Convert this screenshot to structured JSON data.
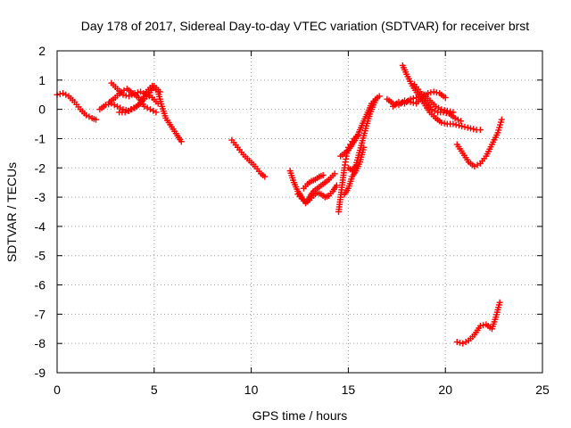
{
  "chart_data": {
    "type": "scatter",
    "title": "Day 178 of 2017, Sidereal Day-to-day VTEC variation (SDTVAR) for receiver brst",
    "xlabel": "GPS time / hours",
    "ylabel": "SDTVAR / TECUs",
    "xlim": [
      0,
      25
    ],
    "ylim": [
      -9,
      2
    ],
    "xticks": [
      "0",
      "5",
      "10",
      "15",
      "20",
      "25"
    ],
    "yticks": [
      "2",
      "1",
      "0",
      "-1",
      "-2",
      "-3",
      "-4",
      "-5",
      "-6",
      "-7",
      "-8",
      "-9"
    ],
    "grid": true,
    "marker": "+",
    "color": "#ff0000",
    "segments": [
      {
        "x": [
          0.0,
          0.3,
          0.6,
          0.9,
          1.2,
          1.5,
          1.8,
          2.0
        ],
        "y": [
          0.5,
          0.55,
          0.45,
          0.25,
          0.0,
          -0.2,
          -0.3,
          -0.35
        ]
      },
      {
        "x": [
          2.2,
          2.5,
          2.8,
          3.1,
          3.4,
          3.7,
          4.0,
          4.3,
          4.6,
          4.9,
          5.2,
          5.4,
          5.6,
          5.9,
          6.2,
          6.4
        ],
        "y": [
          0.0,
          0.15,
          0.2,
          0.1,
          0.0,
          -0.05,
          0.05,
          0.2,
          0.6,
          0.8,
          0.6,
          0.1,
          -0.3,
          -0.6,
          -0.9,
          -1.1
        ]
      },
      {
        "x": [
          2.8,
          3.1,
          3.4,
          3.7,
          4.0,
          4.3,
          4.6,
          4.9,
          5.2
        ],
        "y": [
          0.9,
          0.7,
          0.5,
          0.45,
          0.55,
          0.6,
          0.5,
          0.4,
          0.2
        ]
      },
      {
        "x": [
          2.7,
          3.0,
          3.3,
          3.6,
          3.9,
          4.2,
          4.5,
          4.8,
          5.1
        ],
        "y": [
          0.25,
          0.4,
          0.6,
          0.7,
          0.55,
          0.4,
          0.1,
          0.0,
          -0.1
        ]
      },
      {
        "x": [
          3.2,
          3.5,
          3.8,
          4.1,
          4.4,
          4.7,
          5.0,
          5.3
        ],
        "y": [
          -0.1,
          -0.1,
          0.0,
          0.1,
          0.3,
          0.5,
          0.8,
          0.6
        ]
      },
      {
        "x": [
          9.0,
          9.3,
          9.6,
          9.9,
          10.2,
          10.5,
          10.7
        ],
        "y": [
          -1.05,
          -1.3,
          -1.55,
          -1.75,
          -1.95,
          -2.2,
          -2.3
        ]
      },
      {
        "x": [
          12.0,
          12.2,
          12.4,
          12.6,
          12.8,
          13.0,
          13.2,
          13.4,
          13.6,
          13.8,
          14.0,
          14.3
        ],
        "y": [
          -2.1,
          -2.5,
          -2.8,
          -3.0,
          -3.2,
          -3.0,
          -2.8,
          -2.7,
          -2.6,
          -2.5,
          -2.4,
          -2.2
        ]
      },
      {
        "x": [
          12.4,
          12.6,
          12.8,
          13.0,
          13.2,
          13.4,
          13.6,
          13.8,
          14.0,
          14.2,
          14.4
        ],
        "y": [
          -2.9,
          -3.05,
          -3.2,
          -3.1,
          -2.95,
          -2.85,
          -2.9,
          -3.0,
          -2.95,
          -2.8,
          -2.6
        ]
      },
      {
        "x": [
          12.7,
          12.9,
          13.1,
          13.3,
          13.5,
          13.7
        ],
        "y": [
          -2.7,
          -2.55,
          -2.45,
          -2.4,
          -2.3,
          -2.25
        ]
      },
      {
        "x": [
          14.5,
          14.6,
          14.7,
          14.8,
          14.9,
          15.0,
          15.1,
          15.2,
          15.3,
          15.4,
          15.5
        ],
        "y": [
          -3.5,
          -3.0,
          -2.5,
          -2.0,
          -1.6,
          -1.3,
          -1.2,
          -1.1,
          -1.0,
          -0.95,
          -0.9
        ]
      },
      {
        "x": [
          14.6,
          14.8,
          15.0,
          15.2,
          15.4,
          15.6,
          15.8,
          16.0,
          16.2,
          16.4,
          16.6
        ],
        "y": [
          -1.6,
          -1.5,
          -1.4,
          -1.2,
          -1.0,
          -0.7,
          -0.4,
          -0.1,
          0.2,
          0.35,
          0.45
        ]
      },
      {
        "x": [
          15.0,
          15.2,
          15.4,
          15.6,
          15.8,
          16.0,
          16.2,
          16.4
        ],
        "y": [
          -2.0,
          -2.1,
          -1.9,
          -1.4,
          -0.9,
          -0.4,
          0.0,
          0.3
        ]
      },
      {
        "x": [
          14.8,
          15.0,
          15.2,
          15.4,
          15.6,
          15.8
        ],
        "y": [
          -2.9,
          -2.7,
          -2.3,
          -2.1,
          -1.8,
          -1.3
        ]
      },
      {
        "x": [
          17.0,
          17.3,
          17.6,
          17.9,
          18.2,
          18.5,
          18.8,
          19.1,
          19.4,
          19.7,
          20.0
        ],
        "y": [
          0.35,
          0.2,
          0.15,
          0.3,
          0.25,
          0.2,
          0.4,
          0.55,
          0.6,
          0.55,
          0.4
        ]
      },
      {
        "x": [
          17.3,
          17.6,
          17.9,
          18.2,
          18.5
        ],
        "y": [
          0.1,
          0.25,
          0.2,
          0.35,
          0.4
        ]
      },
      {
        "x": [
          17.8,
          18.0,
          18.3,
          18.6,
          18.9,
          19.2,
          19.5,
          19.8,
          20.1,
          20.4,
          20.7,
          21.0,
          21.3,
          21.6,
          21.8
        ],
        "y": [
          1.5,
          1.2,
          0.8,
          0.5,
          0.2,
          -0.1,
          -0.3,
          -0.45,
          -0.5,
          -0.5,
          -0.55,
          -0.6,
          -0.65,
          -0.7,
          -0.7
        ]
      },
      {
        "x": [
          18.4,
          18.7,
          19.0,
          19.3,
          19.6,
          19.9,
          20.2,
          20.5,
          20.8
        ],
        "y": [
          0.85,
          0.6,
          0.3,
          0.0,
          -0.1,
          -0.1,
          -0.15,
          -0.3,
          -0.4
        ]
      },
      {
        "x": [
          18.9,
          19.2,
          19.5,
          19.8,
          20.1,
          20.4
        ],
        "y": [
          0.5,
          0.3,
          0.1,
          0.0,
          -0.05,
          -0.1
        ]
      },
      {
        "x": [
          20.6,
          20.9,
          21.2,
          21.5,
          21.8,
          22.1,
          22.4,
          22.7,
          22.9
        ],
        "y": [
          -1.2,
          -1.5,
          -1.8,
          -1.95,
          -1.85,
          -1.6,
          -1.2,
          -0.8,
          -0.35
        ]
      },
      {
        "x": [
          20.6,
          20.9,
          21.2,
          21.5,
          21.8,
          22.1,
          22.4,
          22.6,
          22.8
        ],
        "y": [
          -7.95,
          -8.0,
          -7.9,
          -7.7,
          -7.4,
          -7.35,
          -7.5,
          -7.1,
          -6.6
        ]
      }
    ]
  }
}
